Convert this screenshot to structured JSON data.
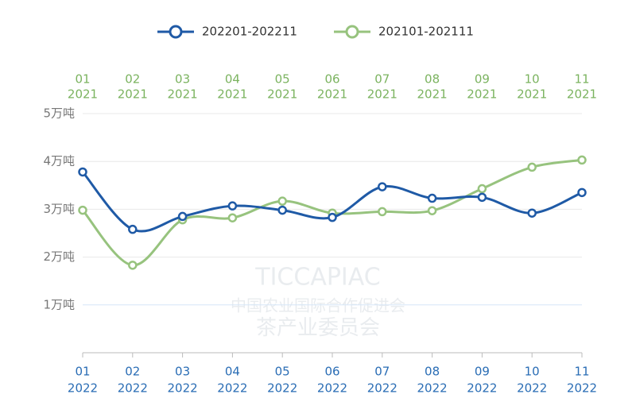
{
  "chart_data": {
    "type": "line",
    "categories": [
      {
        "month": "01",
        "year": "2022"
      },
      {
        "month": "02",
        "year": "2022"
      },
      {
        "month": "03",
        "year": "2022"
      },
      {
        "month": "04",
        "year": "2022"
      },
      {
        "month": "05",
        "year": "2022"
      },
      {
        "month": "06",
        "year": "2022"
      },
      {
        "month": "07",
        "year": "2022"
      },
      {
        "month": "08",
        "year": "2022"
      },
      {
        "month": "09",
        "year": "2022"
      },
      {
        "month": "10",
        "year": "2022"
      },
      {
        "month": "11",
        "year": "2022"
      }
    ],
    "categories2": [
      {
        "month": "01",
        "year": "2021"
      },
      {
        "month": "02",
        "year": "2021"
      },
      {
        "month": "03",
        "year": "2021"
      },
      {
        "month": "04",
        "year": "2021"
      },
      {
        "month": "05",
        "year": "2021"
      },
      {
        "month": "06",
        "year": "2021"
      },
      {
        "month": "07",
        "year": "2021"
      },
      {
        "month": "08",
        "year": "2021"
      },
      {
        "month": "09",
        "year": "2021"
      },
      {
        "month": "10",
        "year": "2021"
      },
      {
        "month": "11",
        "year": "2021"
      }
    ],
    "series": [
      {
        "name": "202201-202211",
        "color": "#1f5aa6",
        "values": [
          3.78,
          2.58,
          2.85,
          3.07,
          2.98,
          2.83,
          3.47,
          3.23,
          3.25,
          2.92,
          3.35
        ]
      },
      {
        "name": "202101-202111",
        "color": "#97c37e",
        "axis": "x2",
        "values": [
          2.98,
          1.83,
          2.78,
          2.82,
          3.17,
          2.92,
          2.95,
          2.97,
          3.43,
          3.88,
          4.03
        ]
      }
    ],
    "ylim": [
      0,
      5
    ],
    "yticks": [
      {
        "value": 1,
        "label": "1万吨"
      },
      {
        "value": 2,
        "label": "2万吨"
      },
      {
        "value": 3,
        "label": "3万吨"
      },
      {
        "value": 4,
        "label": "4万吨"
      },
      {
        "value": 5,
        "label": "5万吨"
      }
    ],
    "grid": true,
    "watermark": [
      "TICCAPIAC",
      "中国农业国际合作促进会",
      "茶产业委员会"
    ]
  }
}
